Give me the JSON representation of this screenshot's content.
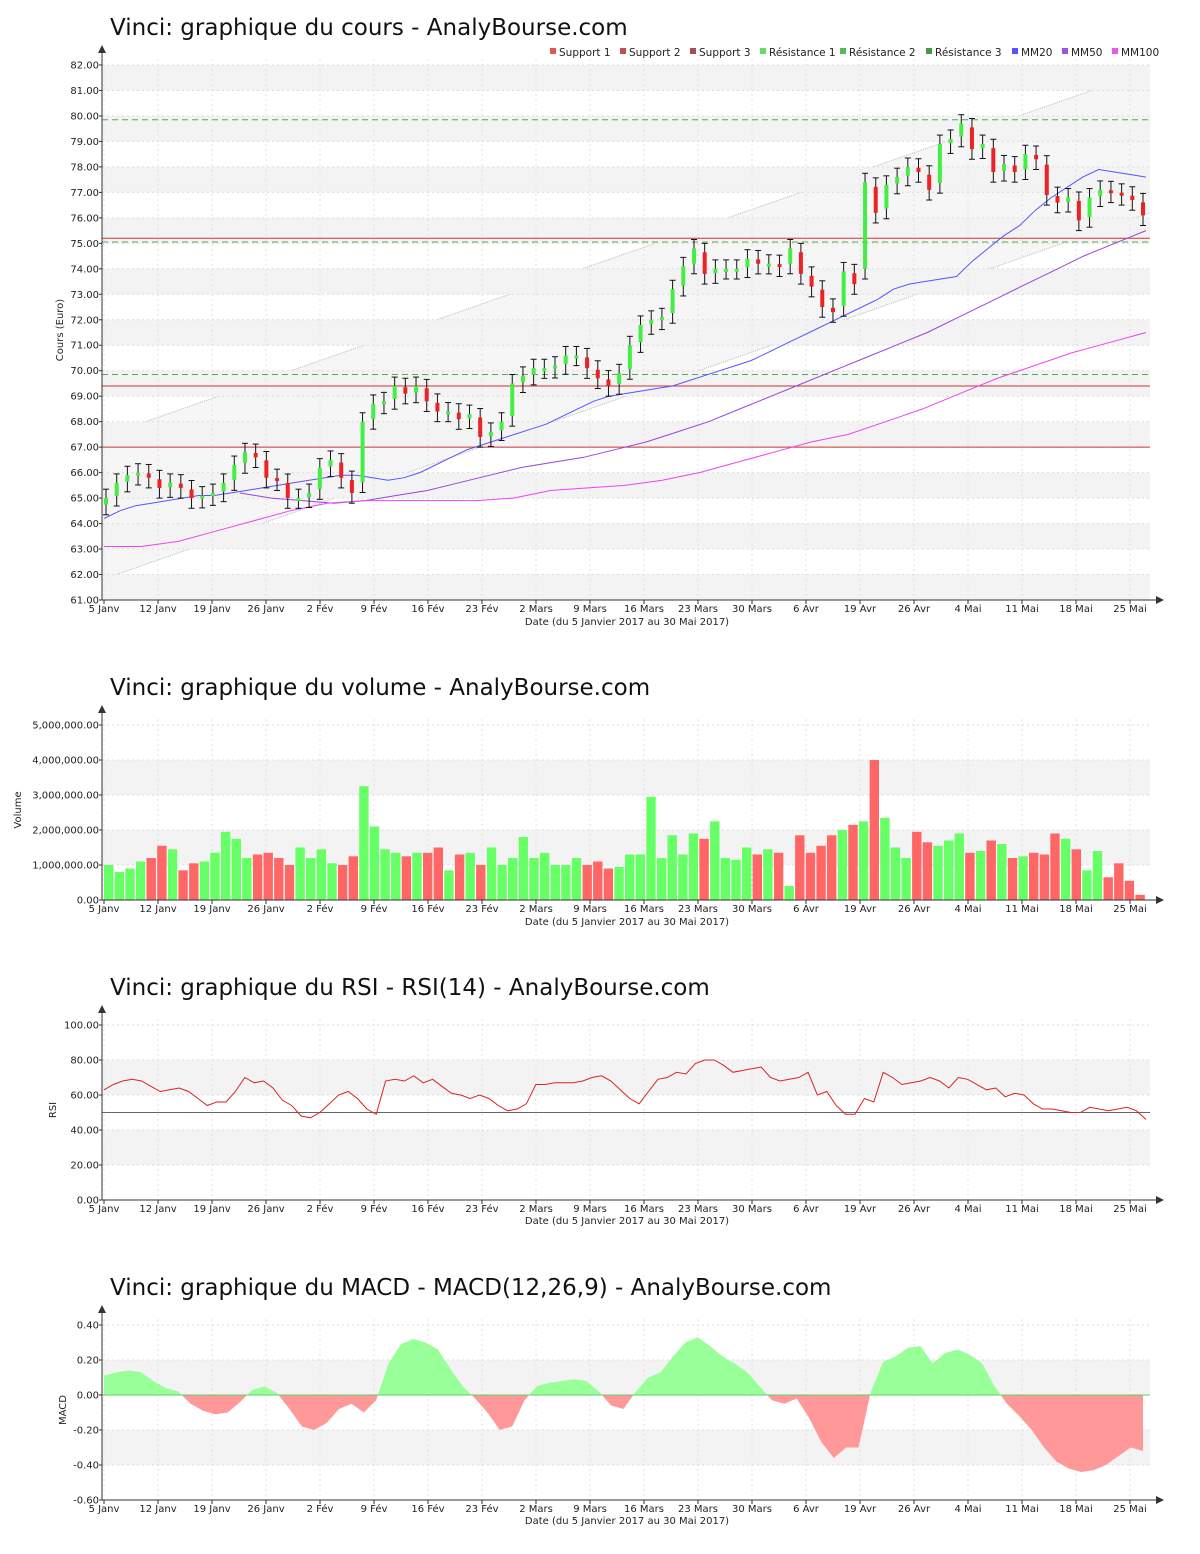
{
  "charts_meta": {
    "date_ticks": [
      "5 Janv",
      "12 Janv",
      "19 Janv",
      "26 Janv",
      "2 Fév",
      "9 Fév",
      "16 Fév",
      "23 Fév",
      "2 Mars",
      "9 Mars",
      "16 Mars",
      "23 Mars",
      "30 Mars",
      "6 Avr",
      "19 Avr",
      "26 Avr",
      "4 Mai",
      "11 Mai",
      "18 Mai",
      "25 Mai"
    ],
    "x_label": "Date (du 5 Janvier 2017 au 30 Mai 2017)"
  },
  "chart_data": [
    {
      "type": "candlestick",
      "title": "Vinci: graphique du cours - AnalyBourse.com",
      "ylabel": "Cours (Euro)",
      "xlabel": "Date (du 5 Janvier 2017 au 30 Mai 2017)",
      "ylim": [
        61,
        82
      ],
      "y_ticks": [
        "61.00",
        "62.00",
        "63.00",
        "64.00",
        "65.00",
        "66.00",
        "67.00",
        "68.00",
        "69.00",
        "70.00",
        "71.00",
        "72.00",
        "73.00",
        "74.00",
        "75.00",
        "76.00",
        "77.00",
        "78.00",
        "79.00",
        "80.00",
        "81.00",
        "82.00"
      ],
      "legend": [
        {
          "name": "Support 1",
          "color": "#e05555"
        },
        {
          "name": "Support 2",
          "color": "#c05050"
        },
        {
          "name": "Support 3",
          "color": "#a05050"
        },
        {
          "name": "Résistance 1",
          "color": "#66dd66"
        },
        {
          "name": "Résistance 2",
          "color": "#55bb55"
        },
        {
          "name": "Résistance 3",
          "color": "#449944"
        },
        {
          "name": "MM20",
          "color": "#5555ff"
        },
        {
          "name": "MM50",
          "color": "#9955dd"
        },
        {
          "name": "MM100",
          "color": "#ee55ee"
        }
      ],
      "support_levels": [
        67.0,
        69.4,
        75.2
      ],
      "resistance_levels": [
        69.85,
        75.05,
        79.85
      ],
      "close": [
        65.0,
        65.6,
        65.9,
        66.0,
        65.8,
        65.4,
        65.6,
        65.4,
        65.0,
        65.1,
        65.2,
        65.6,
        66.3,
        66.8,
        66.6,
        65.8,
        65.7,
        65.0,
        65.0,
        65.2,
        66.2,
        66.5,
        65.8,
        65.2,
        68.0,
        68.7,
        68.8,
        69.4,
        69.1,
        69.4,
        68.8,
        68.4,
        68.4,
        68.1,
        68.3,
        67.4,
        67.6,
        68.0,
        69.5,
        69.8,
        70.1,
        70.1,
        70.2,
        70.6,
        70.6,
        70.1,
        69.7,
        69.4,
        69.9,
        71.0,
        71.8,
        72.0,
        72.1,
        73.2,
        74.1,
        74.8,
        73.8,
        74.0,
        74.0,
        74.0,
        74.4,
        74.2,
        74.2,
        74.1,
        74.8,
        73.8,
        73.3,
        72.5,
        72.3,
        73.9,
        73.4,
        77.4,
        76.2,
        77.3,
        77.6,
        78.0,
        77.8,
        77.1,
        78.9,
        79.1,
        79.7,
        78.7,
        78.9,
        77.8,
        78.1,
        77.8,
        78.5,
        78.3,
        76.9,
        76.6,
        76.8,
        75.9,
        76.8,
        77.1,
        77.0,
        76.9,
        76.7,
        76.1
      ],
      "ma20": [
        64.2,
        64.5,
        64.7,
        64.8,
        64.9,
        65.0,
        65.1,
        65.1,
        65.2,
        65.3,
        65.4,
        65.5,
        65.6,
        65.7,
        65.8,
        65.9,
        65.9,
        65.8,
        65.7,
        65.8,
        66.0,
        66.3,
        66.6,
        66.9,
        67.1,
        67.3,
        67.5,
        67.7,
        67.9,
        68.2,
        68.5,
        68.8,
        69.0,
        69.1,
        69.2,
        69.3,
        69.4,
        69.6,
        69.8,
        70.0,
        70.2,
        70.4,
        70.7,
        71.0,
        71.3,
        71.6,
        71.9,
        72.2,
        72.5,
        72.8,
        73.2,
        73.4,
        73.5,
        73.6,
        73.7,
        74.3,
        74.8,
        75.3,
        75.7,
        76.3,
        76.8,
        77.2,
        77.6,
        77.9,
        77.8,
        77.7,
        77.6
      ],
      "ma50": [
        65.2,
        65.0,
        64.9,
        64.8,
        64.9,
        65.1,
        65.3,
        65.6,
        65.9,
        66.2,
        66.4,
        66.6,
        66.9,
        67.2,
        67.6,
        68.0,
        68.5,
        69.0,
        69.5,
        70.0,
        70.5,
        71.0,
        71.5,
        72.1,
        72.7,
        73.3,
        73.9,
        74.5,
        75.0,
        75.5
      ],
      "ma100": [
        63.1,
        63.1,
        63.3,
        63.7,
        64.1,
        64.5,
        64.8,
        64.9,
        64.9,
        64.9,
        64.9,
        65.0,
        65.3,
        65.4,
        65.5,
        65.7,
        66.0,
        66.4,
        66.8,
        67.2,
        67.5,
        68.0,
        68.5,
        69.1,
        69.7,
        70.2,
        70.7,
        71.1,
        71.5
      ]
    },
    {
      "type": "bar",
      "title": "Vinci: graphique du volume - AnalyBourse.com",
      "ylabel": "Volume",
      "xlabel": "Date (du 5 Janvier 2017 au 30 Mai 2017)",
      "ylim": [
        0,
        5000000
      ],
      "y_ticks": [
        "0.00",
        "1,000,000.00",
        "2,000,000.00",
        "3,000,000.00",
        "4,000,000.00",
        "5,000,000.00"
      ],
      "values": [
        1000000,
        800000,
        900000,
        1100000,
        1200000,
        1550000,
        1450000,
        850000,
        1050000,
        1100000,
        1350000,
        1950000,
        1750000,
        1200000,
        1300000,
        1350000,
        1200000,
        1000000,
        1500000,
        1200000,
        1450000,
        1050000,
        1000000,
        1250000,
        3250000,
        2100000,
        1450000,
        1350000,
        1250000,
        1350000,
        1350000,
        1500000,
        850000,
        1300000,
        1350000,
        1000000,
        1500000,
        1000000,
        1200000,
        1800000,
        1200000,
        1350000,
        1000000,
        1000000,
        1200000,
        1000000,
        1100000,
        900000,
        950000,
        1300000,
        1300000,
        2950000,
        1200000,
        1850000,
        1300000,
        1900000,
        1750000,
        2250000,
        1200000,
        1150000,
        1500000,
        1300000,
        1450000,
        1350000,
        400000,
        1850000,
        1350000,
        1550000,
        1850000,
        2000000,
        2150000,
        2250000,
        4000000,
        2350000,
        1500000,
        1200000,
        1950000,
        1650000,
        1550000,
        1700000,
        1900000,
        1350000,
        1400000,
        1700000,
        1600000,
        1200000,
        1250000,
        1350000,
        1300000,
        1900000,
        1750000,
        1450000,
        850000,
        1400000,
        650000,
        1050000,
        550000,
        150000
      ],
      "colors_up_down": [
        "#66ff66",
        "#ff6666"
      ]
    },
    {
      "type": "line",
      "title": "Vinci: graphique du RSI - RSI(14) - AnalyBourse.com",
      "ylabel": "RSI",
      "xlabel": "Date (du 5 Janvier 2017 au 30 Mai 2017)",
      "ylim": [
        0,
        100
      ],
      "y_ticks": [
        "0.00",
        "20.00",
        "40.00",
        "60.00",
        "80.00",
        "100.00"
      ],
      "reference_line": 50,
      "values": [
        63,
        66,
        68,
        69,
        68,
        65,
        62,
        63,
        64,
        62,
        58,
        54,
        56,
        56,
        62,
        70,
        67,
        68,
        64,
        57,
        54,
        48,
        47,
        50,
        55,
        60,
        62,
        58,
        52,
        49,
        68,
        69,
        68,
        71,
        67,
        69,
        65,
        61,
        60,
        58,
        60,
        58,
        54,
        51,
        52,
        55,
        66,
        66,
        67,
        67,
        67,
        68,
        70,
        71,
        68,
        63,
        58,
        55,
        62,
        69,
        70,
        73,
        72,
        78,
        80,
        80,
        77,
        73,
        74,
        75,
        76,
        70,
        68,
        69,
        70,
        73,
        60,
        62,
        54,
        49,
        49,
        58,
        56,
        73,
        70,
        66,
        67,
        68,
        70,
        68,
        64,
        70,
        69,
        66,
        63,
        64,
        59,
        61,
        60,
        55,
        52,
        52,
        51,
        50,
        50,
        53,
        52,
        51,
        52,
        53,
        51,
        46
      ]
    },
    {
      "type": "area",
      "title": "Vinci: graphique du MACD - MACD(12,26,9) - AnalyBourse.com",
      "ylabel": "MACD",
      "xlabel": "Date (du 5 Janvier 2017 au 30 Mai 2017)",
      "ylim": [
        -0.6,
        0.4
      ],
      "y_ticks": [
        "-0.60",
        "-0.40",
        "-0.20",
        "0.00",
        "0.20",
        "0.40"
      ],
      "values": [
        0.11,
        0.13,
        0.14,
        0.13,
        0.08,
        0.04,
        0.02,
        -0.05,
        -0.09,
        -0.11,
        -0.1,
        -0.04,
        0.03,
        0.05,
        0.01,
        -0.08,
        -0.18,
        -0.2,
        -0.16,
        -0.08,
        -0.05,
        -0.1,
        -0.03,
        0.18,
        0.29,
        0.32,
        0.3,
        0.26,
        0.15,
        0.05,
        -0.02,
        -0.1,
        -0.2,
        -0.18,
        -0.03,
        0.05,
        0.07,
        0.08,
        0.09,
        0.08,
        0.02,
        -0.06,
        -0.08,
        0.02,
        0.1,
        0.13,
        0.22,
        0.3,
        0.33,
        0.28,
        0.22,
        0.18,
        0.13,
        0.05,
        -0.03,
        -0.05,
        -0.02,
        -0.13,
        -0.27,
        -0.36,
        -0.3,
        -0.3,
        0.02,
        0.19,
        0.22,
        0.27,
        0.28,
        0.18,
        0.24,
        0.26,
        0.23,
        0.18,
        0.05,
        -0.05,
        -0.12,
        -0.2,
        -0.3,
        -0.38,
        -0.42,
        -0.44,
        -0.43,
        -0.4,
        -0.35,
        -0.3,
        -0.32
      ],
      "colors_pos_neg": [
        "#99ff99",
        "#ff9999"
      ]
    }
  ]
}
